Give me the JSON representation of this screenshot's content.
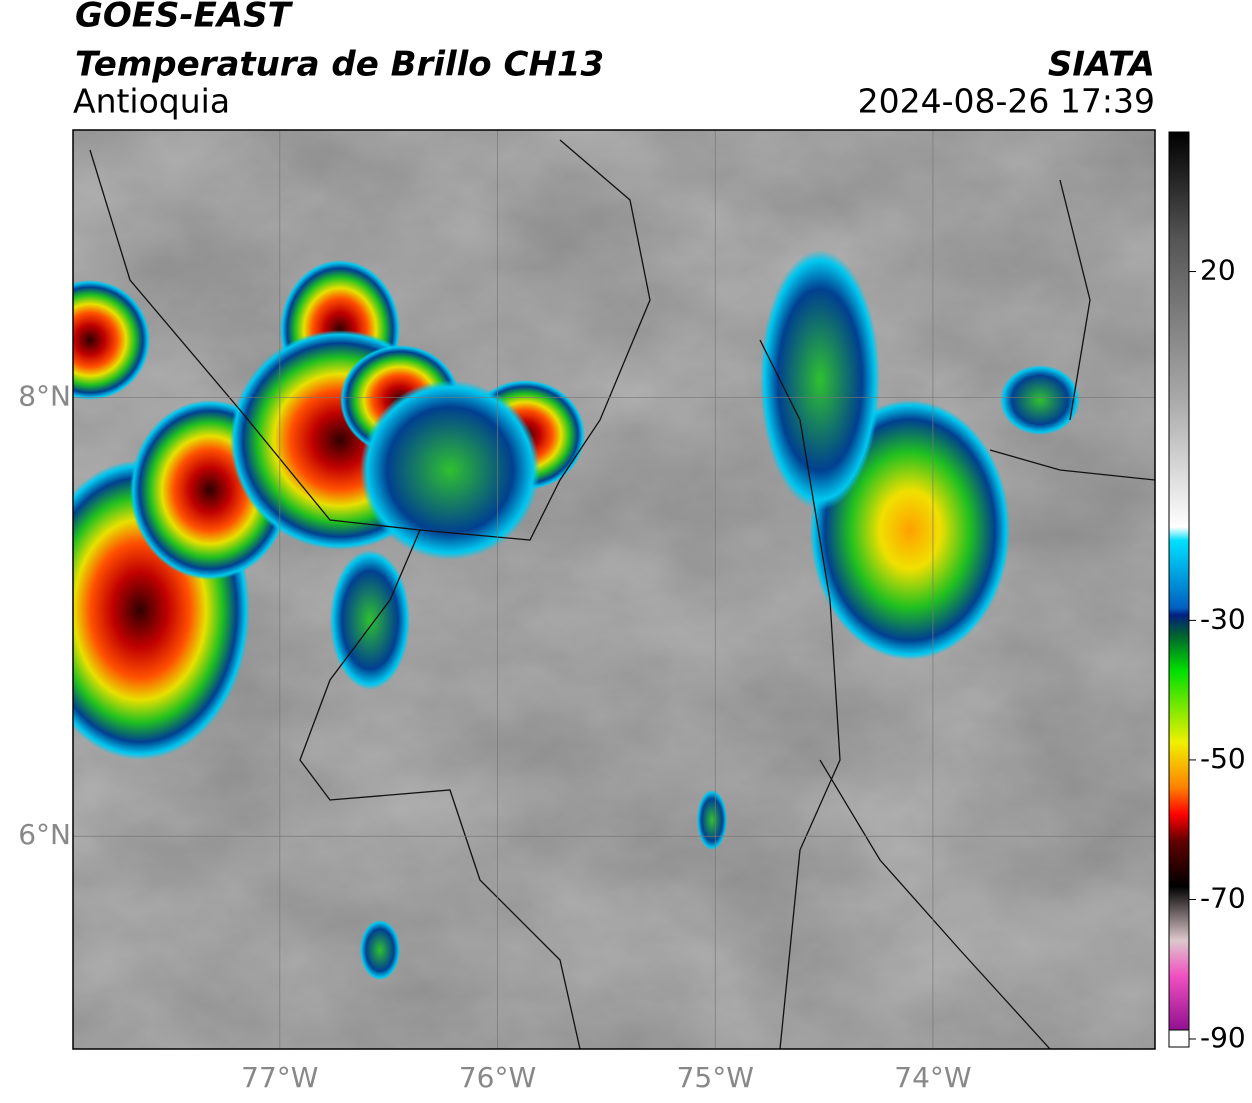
{
  "header": {
    "title": "GOES-EAST",
    "subtitle": "Temperatura de Brillo CH13",
    "region": "Antioquia",
    "source": "SIATA",
    "datetime": "2024-08-26 17:39"
  },
  "map": {
    "xlim": [
      -77.95,
      -72.98
    ],
    "ylim": [
      5.03,
      9.22
    ],
    "xticks": [
      {
        "value": -77,
        "label": "77°W"
      },
      {
        "value": -76,
        "label": "76°W"
      },
      {
        "value": -75,
        "label": "75°W"
      },
      {
        "value": -74,
        "label": "74°W"
      }
    ],
    "yticks": [
      {
        "value": 6,
        "label": "6°N"
      },
      {
        "value": 8,
        "label": "8°N"
      }
    ],
    "grid": true
  },
  "colorbar": {
    "lim": [
      -90,
      40
    ],
    "ticks": [
      20,
      -30,
      -50,
      -70,
      -90
    ]
  }
}
